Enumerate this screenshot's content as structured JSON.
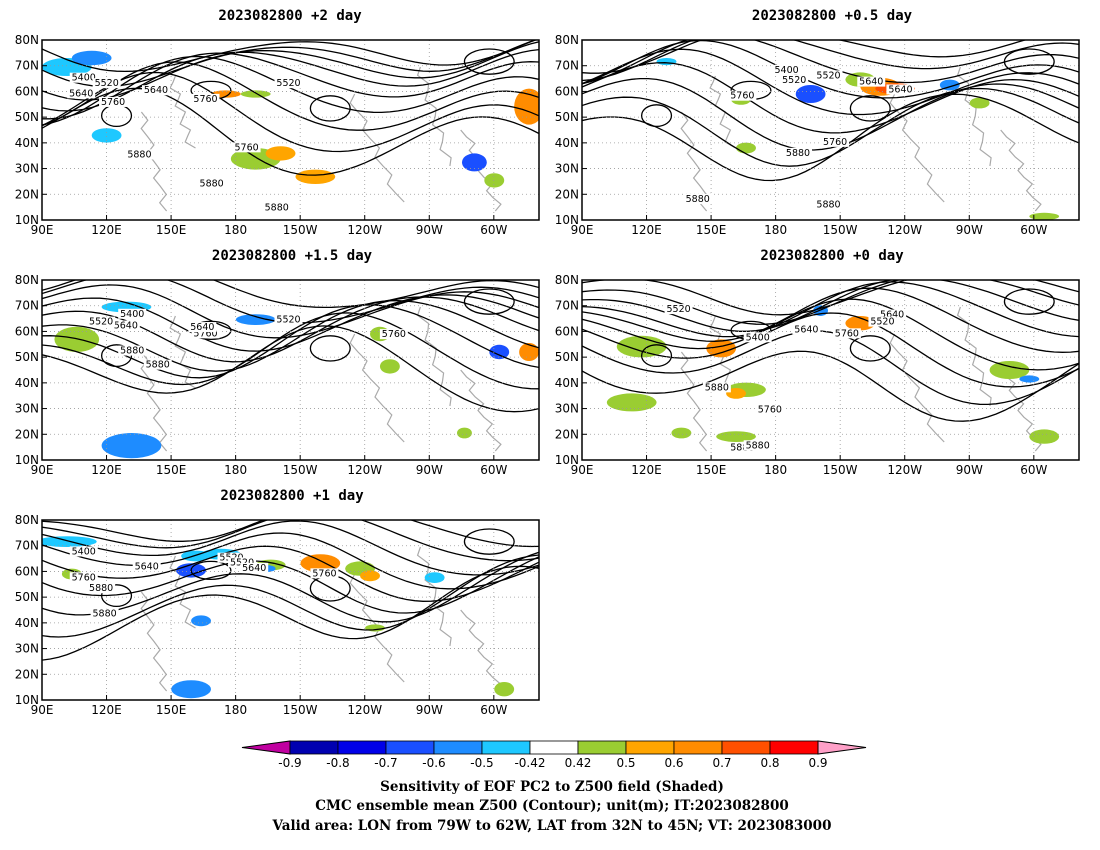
{
  "panels": [
    {
      "id": "p2",
      "title": "2023082800 +2 day",
      "contour_labels": [
        [
          "5400",
          84,
          52
        ],
        [
          "5520",
          71,
          59
        ],
        [
          "5640",
          43,
          72
        ],
        [
          "5760",
          94,
          79
        ],
        [
          "5760",
          95,
          141
        ],
        [
          "5880",
          196,
          150
        ],
        [
          "5520",
          96,
          59
        ],
        [
          "5640",
          86,
          68
        ],
        [
          "5760",
          78,
          83
        ],
        [
          "5880",
          128,
          187
        ],
        [
          "5880",
          109,
          218
        ]
      ]
    },
    {
      "id": "p05",
      "title": "2023082800 +0.5 day",
      "contour_labels": [
        [
          "5400",
          95,
          42
        ],
        [
          "5520",
          96,
          49
        ],
        [
          "5640",
          97,
          57
        ],
        [
          "5520",
          122,
          55
        ],
        [
          "5640",
          124,
          67
        ],
        [
          "5760",
          121,
          75
        ],
        [
          "5760",
          191,
          134
        ],
        [
          "5880",
          163,
          148
        ],
        [
          "5880",
          127,
          207
        ],
        [
          "5880",
          96,
          214
        ]
      ]
    },
    {
      "id": "p15",
      "title": "2023082800 +1.5 day",
      "contour_labels": [
        [
          "5400",
          99,
          47
        ],
        [
          "5520",
          96,
          54
        ],
        [
          "5640",
          92,
          62
        ],
        [
          "5760",
          94,
          72
        ],
        [
          "5880",
          127,
          112
        ],
        [
          "5520",
          119,
          57
        ],
        [
          "5640",
          121,
          64
        ],
        [
          "5760",
          118,
          73
        ],
        [
          "5880",
          99,
          94
        ]
      ]
    },
    {
      "id": "p0",
      "title": "2023082800 +0 day",
      "contour_labels": [
        [
          "5520",
          106,
          41
        ],
        [
          "5640",
          104,
          48
        ],
        [
          "5520",
          117,
          57
        ],
        [
          "5640",
          129,
          67
        ],
        [
          "5760",
          123,
          72
        ],
        [
          "5400",
          101,
          77
        ],
        [
          "5880",
          148,
          141
        ],
        [
          "5760",
          108,
          169
        ],
        [
          "5880",
          121,
          218
        ],
        [
          "5880",
          101,
          215
        ]
      ]
    },
    {
      "id": "p1",
      "title": "2023082800 +1 day",
      "contour_labels": [
        [
          "5400",
          84,
          44
        ],
        [
          "5520",
          88,
          52
        ],
        [
          "5640",
          79,
          63
        ],
        [
          "5760",
          84,
          77
        ],
        [
          "5880",
          126,
          123
        ],
        [
          "5520",
          115,
          58
        ],
        [
          "5640",
          122,
          65
        ],
        [
          "5760",
          110,
          72
        ],
        [
          "5880",
          119,
          91
        ]
      ]
    }
  ],
  "axes": {
    "lon_ticks": [
      "90E",
      "120E",
      "150E",
      "180",
      "150W",
      "120W",
      "90W",
      "60W"
    ],
    "lat_ticks": [
      "80N",
      "70N",
      "60N",
      "50N",
      "40N",
      "30N",
      "20N",
      "10N"
    ]
  },
  "colorbar": {
    "labels": [
      "-0.9",
      "-0.8",
      "-0.7",
      "-0.6",
      "-0.5",
      "-0.42",
      "0.42",
      "0.5",
      "0.6",
      "0.7",
      "0.8",
      "0.9"
    ],
    "colors": [
      "#0000b0",
      "#0000e8",
      "#1a4fff",
      "#1e8cff",
      "#1ec8ff",
      "#ffffff",
      "#9acd32",
      "#ffa500",
      "#ff8c00",
      "#ff5000",
      "#ff0000"
    ],
    "low_color": "#c000a0",
    "high_color": "#ffa0c8"
  },
  "caption": {
    "line1": "Sensitivity of EOF PC2 to Z500 field (Shaded)",
    "line2": "CMC ensemble mean Z500 (Contour); unit(m); IT:2023082800",
    "line3": "Valid area: LON from 79W to 62W, LAT from 32N to 45N; VT: 2023083000"
  }
}
